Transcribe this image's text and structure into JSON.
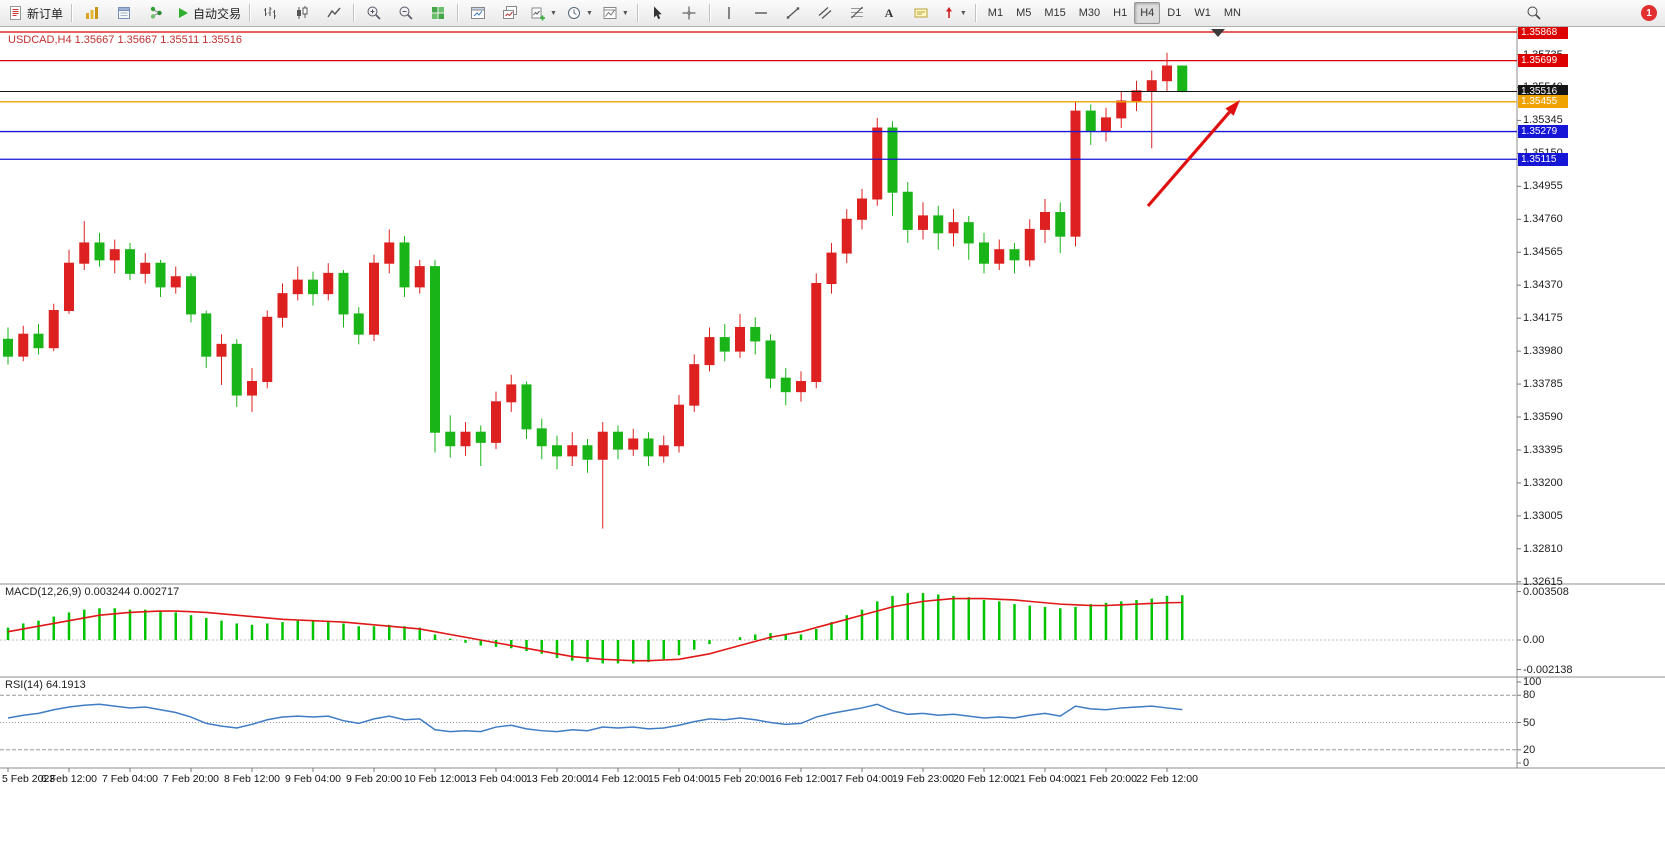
{
  "toolbar": {
    "new_order": "新订单",
    "autotrading": "自动交易",
    "notification_count": "1",
    "timeframes": [
      {
        "label": "M1",
        "active": false
      },
      {
        "label": "M5",
        "active": false
      },
      {
        "label": "M15",
        "active": false
      },
      {
        "label": "M30",
        "active": false
      },
      {
        "label": "H1",
        "active": false
      },
      {
        "label": "H4",
        "active": true
      },
      {
        "label": "D1",
        "active": false
      },
      {
        "label": "W1",
        "active": false
      },
      {
        "label": "MN",
        "active": false
      }
    ],
    "icons": [
      "new-order-icon",
      "market-watch-icon",
      "data-window-icon",
      "navigator-icon",
      "autotrading-icon",
      "bars-chart-icon",
      "candles-chart-icon",
      "line-chart-icon",
      "zoom-in-icon",
      "zoom-out-icon",
      "tile-windows-icon",
      "arrange-windows-icon",
      "cascade-windows-icon",
      "new-chart-icon",
      "period-icon",
      "template-icon",
      "cursor-icon",
      "crosshair-icon",
      "vertical-line-icon",
      "horizontal-line-icon",
      "trendline-icon",
      "channel-icon",
      "fibonacci-icon",
      "text-icon",
      "text-label-icon",
      "arrows-icon",
      "search-icon",
      "notification-badge"
    ]
  },
  "chart": {
    "symbol_info": "USDCAD,H4 1.35667 1.35667 1.35511 1.35516"
  },
  "chart_data": {
    "type": "candlestick",
    "symbol": "USDCAD",
    "period": "H4",
    "up_color": "#dd2020",
    "down_color": "#18b418",
    "y_axis_labels": [
      "1.35735",
      "1.35540",
      "1.35345",
      "1.35150",
      "1.34955",
      "1.34760",
      "1.34565",
      "1.34370",
      "1.34175",
      "1.33980",
      "1.33785",
      "1.33590",
      "1.33395",
      "1.33200",
      "1.33005",
      "1.32810",
      "1.32615"
    ],
    "x_axis_labels": [
      "5 Feb 2023",
      "6 Feb 12:00",
      "7 Feb 04:00",
      "7 Feb 20:00",
      "8 Feb 12:00",
      "9 Feb 04:00",
      "9 Feb 20:00",
      "10 Feb 12:00",
      "13 Feb 04:00",
      "13 Feb 20:00",
      "14 Feb 12:00",
      "15 Feb 04:00",
      "15 Feb 20:00",
      "16 Feb 12:00",
      "17 Feb 04:00",
      "19 Feb 23:00",
      "20 Feb 12:00",
      "21 Feb 04:00",
      "21 Feb 20:00",
      "22 Feb 12:00"
    ],
    "levels": [
      {
        "price": 1.35868,
        "label": "1.35868",
        "color": "#dd0000"
      },
      {
        "price": 1.35699,
        "label": "1.35699",
        "color": "#dd0000"
      },
      {
        "price": 1.35516,
        "label": "1.35516",
        "color": "#151515",
        "kind": "bid"
      },
      {
        "price": 1.35455,
        "label": "1.35455",
        "color": "#efa300"
      },
      {
        "price": 1.35279,
        "label": "1.35279",
        "color": "#1616d6"
      },
      {
        "price": 1.35115,
        "label": "1.35115",
        "color": "#1616d6"
      }
    ],
    "annotation_arrow": {
      "from": [
        1148,
        206
      ],
      "to": [
        1240,
        100
      ],
      "color": "#e01010"
    },
    "candles": [
      [
        1.3405,
        1.3412,
        1.339,
        1.3395
      ],
      [
        1.3395,
        1.3413,
        1.3392,
        1.3408
      ],
      [
        1.3408,
        1.3414,
        1.3396,
        1.34
      ],
      [
        1.34,
        1.3426,
        1.3398,
        1.3422
      ],
      [
        1.3422,
        1.3458,
        1.342,
        1.345
      ],
      [
        1.345,
        1.3475,
        1.3446,
        1.3462
      ],
      [
        1.3462,
        1.3468,
        1.3448,
        1.3452
      ],
      [
        1.3452,
        1.3464,
        1.3444,
        1.3458
      ],
      [
        1.3458,
        1.3462,
        1.344,
        1.3444
      ],
      [
        1.3444,
        1.3456,
        1.3438,
        1.345
      ],
      [
        1.345,
        1.3452,
        1.343,
        1.3436
      ],
      [
        1.3436,
        1.3448,
        1.3432,
        1.3442
      ],
      [
        1.3442,
        1.3444,
        1.3415,
        1.342
      ],
      [
        1.342,
        1.3422,
        1.3388,
        1.3395
      ],
      [
        1.3395,
        1.3408,
        1.3378,
        1.3402
      ],
      [
        1.3402,
        1.3405,
        1.3365,
        1.3372
      ],
      [
        1.3372,
        1.3388,
        1.3362,
        1.338
      ],
      [
        1.338,
        1.3422,
        1.3376,
        1.3418
      ],
      [
        1.3418,
        1.3438,
        1.3412,
        1.3432
      ],
      [
        1.3432,
        1.3448,
        1.3428,
        1.344
      ],
      [
        1.344,
        1.3445,
        1.3425,
        1.3432
      ],
      [
        1.3432,
        1.345,
        1.3428,
        1.3444
      ],
      [
        1.3444,
        1.3446,
        1.3412,
        1.342
      ],
      [
        1.342,
        1.3424,
        1.3402,
        1.3408
      ],
      [
        1.3408,
        1.3455,
        1.3404,
        1.345
      ],
      [
        1.345,
        1.347,
        1.3444,
        1.3462
      ],
      [
        1.3462,
        1.3466,
        1.343,
        1.3436
      ],
      [
        1.3436,
        1.3452,
        1.3432,
        1.3448
      ],
      [
        1.3448,
        1.3452,
        1.3338,
        1.335
      ],
      [
        1.335,
        1.336,
        1.3335,
        1.3342
      ],
      [
        1.3342,
        1.3356,
        1.3336,
        1.335
      ],
      [
        1.335,
        1.3354,
        1.333,
        1.3344
      ],
      [
        1.3344,
        1.3374,
        1.334,
        1.3368
      ],
      [
        1.3368,
        1.3384,
        1.3362,
        1.3378
      ],
      [
        1.3378,
        1.338,
        1.3346,
        1.3352
      ],
      [
        1.3352,
        1.3358,
        1.3334,
        1.3342
      ],
      [
        1.3342,
        1.3348,
        1.3328,
        1.3336
      ],
      [
        1.3336,
        1.335,
        1.333,
        1.3342
      ],
      [
        1.3342,
        1.3346,
        1.3326,
        1.3334
      ],
      [
        1.3334,
        1.3356,
        1.3293,
        1.335
      ],
      [
        1.335,
        1.3354,
        1.3334,
        1.334
      ],
      [
        1.334,
        1.3352,
        1.3336,
        1.3346
      ],
      [
        1.3346,
        1.335,
        1.333,
        1.3336
      ],
      [
        1.3336,
        1.3348,
        1.3332,
        1.3342
      ],
      [
        1.3342,
        1.3372,
        1.3338,
        1.3366
      ],
      [
        1.3366,
        1.3396,
        1.3362,
        1.339
      ],
      [
        1.339,
        1.3412,
        1.3386,
        1.3406
      ],
      [
        1.3406,
        1.3414,
        1.3392,
        1.3398
      ],
      [
        1.3398,
        1.342,
        1.3394,
        1.3412
      ],
      [
        1.3412,
        1.3418,
        1.3396,
        1.3404
      ],
      [
        1.3404,
        1.3408,
        1.3376,
        1.3382
      ],
      [
        1.3382,
        1.3388,
        1.3366,
        1.3374
      ],
      [
        1.3374,
        1.3386,
        1.3368,
        1.338
      ],
      [
        1.338,
        1.3444,
        1.3376,
        1.3438
      ],
      [
        1.3438,
        1.3462,
        1.3432,
        1.3456
      ],
      [
        1.3456,
        1.3482,
        1.345,
        1.3476
      ],
      [
        1.3476,
        1.3494,
        1.347,
        1.3488
      ],
      [
        1.3488,
        1.3536,
        1.3484,
        1.353
      ],
      [
        1.353,
        1.3534,
        1.3478,
        1.3492
      ],
      [
        1.3492,
        1.3498,
        1.3462,
        1.347
      ],
      [
        1.347,
        1.3486,
        1.3464,
        1.3478
      ],
      [
        1.3478,
        1.3484,
        1.3458,
        1.3468
      ],
      [
        1.3468,
        1.3482,
        1.346,
        1.3474
      ],
      [
        1.3474,
        1.3478,
        1.3452,
        1.3462
      ],
      [
        1.3462,
        1.3468,
        1.3444,
        1.345
      ],
      [
        1.345,
        1.3464,
        1.3446,
        1.3458
      ],
      [
        1.3458,
        1.3462,
        1.3444,
        1.3452
      ],
      [
        1.3452,
        1.3476,
        1.3448,
        1.347
      ],
      [
        1.347,
        1.3488,
        1.3462,
        1.348
      ],
      [
        1.348,
        1.3486,
        1.3456,
        1.3466
      ],
      [
        1.3466,
        1.3546,
        1.346,
        1.354
      ],
      [
        1.354,
        1.3544,
        1.352,
        1.3528
      ],
      [
        1.3528,
        1.3542,
        1.3522,
        1.3536
      ],
      [
        1.3536,
        1.3552,
        1.353,
        1.3546
      ],
      [
        1.3546,
        1.3558,
        1.354,
        1.3552
      ],
      [
        1.3552,
        1.3564,
        1.3518,
        1.3558
      ],
      [
        1.3558,
        1.35745,
        1.3552,
        1.35667
      ],
      [
        1.35667,
        1.35667,
        1.35511,
        1.35516
      ]
    ],
    "indicators": [
      {
        "name": "MACD",
        "label": "MACD(12,26,9) 0.003244 0.002717",
        "histogram_color": "#00c400",
        "signal_color": "#e01818",
        "axis_labels": [
          "0.003508",
          "0.00",
          "-0.002138"
        ],
        "histogram": [
          0.0009,
          0.0012,
          0.0014,
          0.0017,
          0.002,
          0.0022,
          0.0023,
          0.0023,
          0.0022,
          0.0022,
          0.0021,
          0.002,
          0.0018,
          0.0016,
          0.0014,
          0.0012,
          0.0011,
          0.0012,
          0.0013,
          0.0014,
          0.0014,
          0.0014,
          0.0012,
          0.001,
          0.001,
          0.0011,
          0.001,
          0.0009,
          0.0004,
          0.0001,
          -0.0002,
          -0.0004,
          -0.0005,
          -0.0006,
          -0.0008,
          -0.001,
          -0.0013,
          -0.0015,
          -0.0016,
          -0.0017,
          -0.0017,
          -0.0017,
          -0.0016,
          -0.0014,
          -0.0011,
          -0.0007,
          -0.0003,
          0.0,
          0.0002,
          0.0004,
          0.0005,
          0.0004,
          0.0004,
          0.0008,
          0.0013,
          0.0018,
          0.0022,
          0.0028,
          0.0032,
          0.0034,
          0.0034,
          0.0033,
          0.0032,
          0.0031,
          0.0029,
          0.0028,
          0.0026,
          0.0025,
          0.0024,
          0.0023,
          0.0024,
          0.0026,
          0.0027,
          0.0028,
          0.0029,
          0.003,
          0.0032,
          0.003244
        ],
        "signal": [
          0.0006,
          0.0008,
          0.001,
          0.0012,
          0.0014,
          0.0016,
          0.0018,
          0.0019,
          0.002,
          0.00205,
          0.0021,
          0.0021,
          0.00205,
          0.002,
          0.0019,
          0.0018,
          0.0017,
          0.0016,
          0.0015,
          0.00145,
          0.0014,
          0.00135,
          0.0013,
          0.0012,
          0.0011,
          0.001,
          0.0009,
          0.0008,
          0.0006,
          0.0004,
          0.0002,
          0.0,
          -0.0002,
          -0.0004,
          -0.0006,
          -0.0008,
          -0.001,
          -0.0012,
          -0.0013,
          -0.0014,
          -0.00145,
          -0.0015,
          -0.0015,
          -0.00145,
          -0.0014,
          -0.0012,
          -0.001,
          -0.0007,
          -0.0004,
          -0.0001,
          0.0002,
          0.0004,
          0.0006,
          0.0009,
          0.0012,
          0.0015,
          0.0018,
          0.0021,
          0.0024,
          0.0026,
          0.0028,
          0.0029,
          0.003,
          0.003,
          0.003,
          0.00295,
          0.0029,
          0.0028,
          0.0027,
          0.0026,
          0.00255,
          0.0025,
          0.0025,
          0.00255,
          0.0026,
          0.00265,
          0.0027,
          0.002717
        ]
      },
      {
        "name": "RSI",
        "label": "RSI(14) 64.1913",
        "line_color": "#3f7cc4",
        "levels": [
          80,
          50,
          20
        ],
        "axis_labels": [
          "100",
          "80",
          "50",
          "20",
          "0"
        ],
        "values": [
          55,
          58,
          60,
          64,
          67,
          69,
          70,
          68,
          66,
          67,
          64,
          61,
          56,
          49,
          46,
          44,
          48,
          53,
          56,
          57,
          56,
          57,
          52,
          49,
          54,
          57,
          53,
          54,
          42,
          40,
          41,
          40,
          45,
          47,
          43,
          41,
          40,
          42,
          41,
          45,
          44,
          45,
          43,
          44,
          47,
          51,
          54,
          53,
          55,
          53,
          50,
          48,
          49,
          56,
          60,
          63,
          66,
          70,
          63,
          59,
          60,
          58,
          59,
          57,
          55,
          56,
          55,
          58,
          60,
          57,
          68,
          65,
          64,
          66,
          67,
          68,
          66,
          64.19
        ]
      }
    ]
  }
}
